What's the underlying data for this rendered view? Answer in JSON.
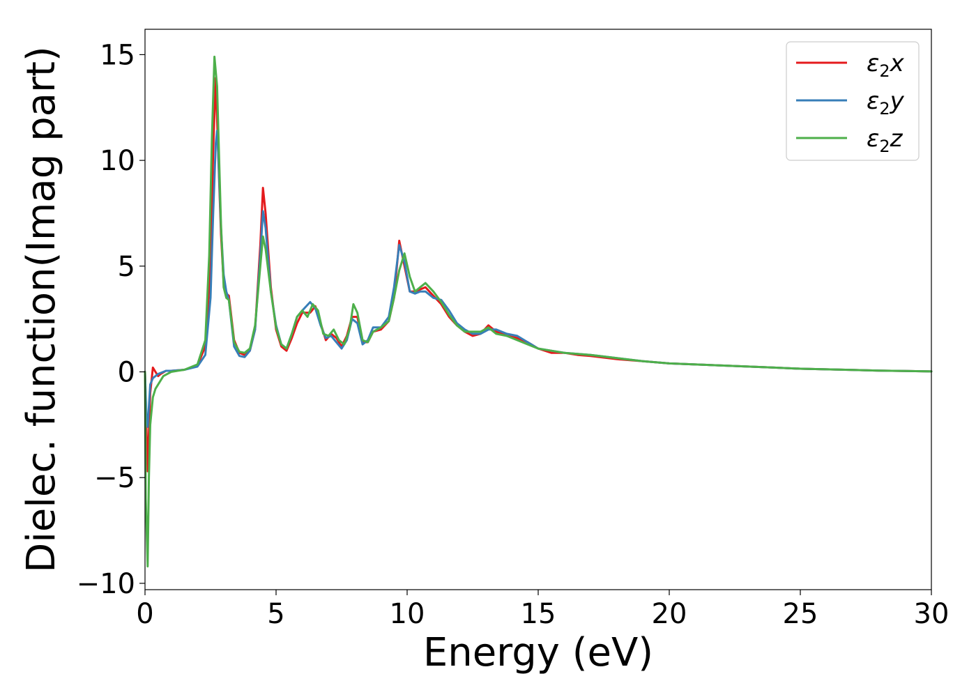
{
  "chart_data": {
    "type": "line",
    "xlabel": "Energy (eV)",
    "ylabel": "Dielec. function(Imag part)",
    "xlim": [
      0,
      30
    ],
    "ylim": [
      -10.3,
      16.2
    ],
    "xticks": [
      0,
      5,
      10,
      15,
      20,
      25,
      30
    ],
    "yticks": [
      -10,
      -5,
      0,
      5,
      10,
      15
    ],
    "xtick_labels": [
      "0",
      "5",
      "10",
      "15",
      "20",
      "25",
      "30"
    ],
    "ytick_labels": [
      "−10",
      "−5",
      "0",
      "5",
      "10",
      "15"
    ],
    "grid": false,
    "legend_position": "top-right",
    "series": [
      {
        "name": "ε₂x",
        "legend_main": "ε",
        "legend_sub": "2",
        "legend_var": "x",
        "color": "#e41a1c",
        "points": [
          [
            0,
            0
          ],
          [
            0.05,
            -2.5
          ],
          [
            0.1,
            -4.7
          ],
          [
            0.2,
            -1.0
          ],
          [
            0.3,
            0.2
          ],
          [
            0.4,
            0.0
          ],
          [
            0.5,
            -0.2
          ],
          [
            0.6,
            -0.1
          ],
          [
            0.8,
            0.05
          ],
          [
            1.0,
            0.05
          ],
          [
            1.5,
            0.1
          ],
          [
            2.0,
            0.3
          ],
          [
            2.3,
            1.2
          ],
          [
            2.5,
            5.0
          ],
          [
            2.6,
            10.5
          ],
          [
            2.7,
            13.9
          ],
          [
            2.8,
            10.0
          ],
          [
            2.9,
            6.5
          ],
          [
            3.0,
            4.2
          ],
          [
            3.1,
            3.7
          ],
          [
            3.2,
            3.6
          ],
          [
            3.4,
            1.5
          ],
          [
            3.6,
            0.9
          ],
          [
            3.8,
            0.8
          ],
          [
            4.0,
            1.0
          ],
          [
            4.2,
            2.0
          ],
          [
            4.4,
            6.0
          ],
          [
            4.5,
            8.7
          ],
          [
            4.6,
            7.5
          ],
          [
            4.8,
            4.0
          ],
          [
            5.0,
            2.0
          ],
          [
            5.2,
            1.2
          ],
          [
            5.4,
            1.0
          ],
          [
            5.6,
            1.6
          ],
          [
            5.8,
            2.3
          ],
          [
            6.0,
            2.8
          ],
          [
            6.3,
            2.8
          ],
          [
            6.5,
            3.1
          ],
          [
            6.7,
            2.3
          ],
          [
            6.9,
            1.5
          ],
          [
            7.1,
            1.8
          ],
          [
            7.3,
            1.6
          ],
          [
            7.5,
            1.2
          ],
          [
            7.7,
            1.7
          ],
          [
            7.9,
            2.6
          ],
          [
            8.1,
            2.6
          ],
          [
            8.3,
            1.4
          ],
          [
            8.5,
            1.4
          ],
          [
            8.7,
            1.9
          ],
          [
            9.0,
            2.0
          ],
          [
            9.3,
            2.4
          ],
          [
            9.5,
            3.5
          ],
          [
            9.7,
            6.2
          ],
          [
            9.9,
            5.0
          ],
          [
            10.1,
            3.8
          ],
          [
            10.3,
            3.8
          ],
          [
            10.5,
            3.9
          ],
          [
            10.7,
            4.0
          ],
          [
            11.0,
            3.6
          ],
          [
            11.3,
            3.2
          ],
          [
            11.6,
            2.6
          ],
          [
            11.9,
            2.2
          ],
          [
            12.2,
            1.9
          ],
          [
            12.5,
            1.7
          ],
          [
            12.8,
            1.8
          ],
          [
            13.1,
            2.2
          ],
          [
            13.4,
            1.9
          ],
          [
            13.8,
            1.7
          ],
          [
            14.2,
            1.6
          ],
          [
            14.6,
            1.4
          ],
          [
            15.0,
            1.1
          ],
          [
            15.5,
            0.9
          ],
          [
            16.0,
            0.9
          ],
          [
            16.5,
            0.8
          ],
          [
            17.0,
            0.75
          ],
          [
            18.0,
            0.6
          ],
          [
            19.0,
            0.5
          ],
          [
            20.0,
            0.4
          ],
          [
            21.0,
            0.35
          ],
          [
            22.0,
            0.3
          ],
          [
            23.0,
            0.25
          ],
          [
            24.0,
            0.2
          ],
          [
            25.0,
            0.15
          ],
          [
            26.0,
            0.12
          ],
          [
            27.0,
            0.09
          ],
          [
            28.0,
            0.06
          ],
          [
            29.0,
            0.04
          ],
          [
            30.0,
            0.02
          ]
        ]
      },
      {
        "name": "ε₂y",
        "legend_main": "ε",
        "legend_sub": "2",
        "legend_var": "y",
        "color": "#377eb8",
        "points": [
          [
            0,
            0
          ],
          [
            0.05,
            -2.0
          ],
          [
            0.1,
            -2.6
          ],
          [
            0.2,
            -0.6
          ],
          [
            0.3,
            -0.3
          ],
          [
            0.5,
            -0.1
          ],
          [
            0.8,
            0.05
          ],
          [
            1.0,
            0.05
          ],
          [
            1.5,
            0.1
          ],
          [
            2.0,
            0.25
          ],
          [
            2.3,
            0.8
          ],
          [
            2.5,
            3.5
          ],
          [
            2.6,
            7.5
          ],
          [
            2.7,
            10.8
          ],
          [
            2.75,
            11.4
          ],
          [
            2.8,
            10.2
          ],
          [
            2.9,
            6.8
          ],
          [
            3.0,
            4.6
          ],
          [
            3.1,
            3.8
          ],
          [
            3.2,
            3.4
          ],
          [
            3.4,
            1.2
          ],
          [
            3.6,
            0.75
          ],
          [
            3.8,
            0.7
          ],
          [
            4.0,
            1.0
          ],
          [
            4.2,
            2.0
          ],
          [
            4.4,
            5.5
          ],
          [
            4.5,
            7.6
          ],
          [
            4.6,
            6.8
          ],
          [
            4.8,
            3.8
          ],
          [
            5.0,
            2.2
          ],
          [
            5.2,
            1.3
          ],
          [
            5.4,
            1.1
          ],
          [
            5.6,
            1.8
          ],
          [
            5.8,
            2.6
          ],
          [
            6.0,
            2.9
          ],
          [
            6.3,
            3.3
          ],
          [
            6.5,
            3.0
          ],
          [
            6.7,
            2.2
          ],
          [
            6.9,
            1.6
          ],
          [
            7.1,
            1.7
          ],
          [
            7.3,
            1.4
          ],
          [
            7.5,
            1.1
          ],
          [
            7.7,
            1.5
          ],
          [
            7.9,
            2.5
          ],
          [
            8.1,
            2.3
          ],
          [
            8.3,
            1.3
          ],
          [
            8.5,
            1.5
          ],
          [
            8.7,
            2.1
          ],
          [
            9.0,
            2.1
          ],
          [
            9.3,
            2.6
          ],
          [
            9.5,
            4.0
          ],
          [
            9.7,
            6.0
          ],
          [
            9.9,
            5.2
          ],
          [
            10.1,
            3.8
          ],
          [
            10.3,
            3.7
          ],
          [
            10.5,
            3.8
          ],
          [
            10.7,
            3.8
          ],
          [
            11.0,
            3.5
          ],
          [
            11.3,
            3.4
          ],
          [
            11.6,
            2.9
          ],
          [
            11.9,
            2.3
          ],
          [
            12.2,
            2.0
          ],
          [
            12.5,
            1.8
          ],
          [
            12.8,
            1.8
          ],
          [
            13.1,
            2.0
          ],
          [
            13.4,
            2.0
          ],
          [
            13.8,
            1.8
          ],
          [
            14.2,
            1.7
          ],
          [
            14.6,
            1.4
          ],
          [
            15.0,
            1.1
          ],
          [
            15.5,
            1.0
          ],
          [
            16.0,
            0.9
          ],
          [
            16.5,
            0.85
          ],
          [
            17.0,
            0.8
          ],
          [
            18.0,
            0.65
          ],
          [
            19.0,
            0.5
          ],
          [
            20.0,
            0.4
          ],
          [
            21.0,
            0.35
          ],
          [
            22.0,
            0.3
          ],
          [
            23.0,
            0.25
          ],
          [
            24.0,
            0.2
          ],
          [
            25.0,
            0.15
          ],
          [
            26.0,
            0.12
          ],
          [
            27.0,
            0.09
          ],
          [
            28.0,
            0.06
          ],
          [
            29.0,
            0.04
          ],
          [
            30.0,
            0.02
          ]
        ]
      },
      {
        "name": "ε₂z",
        "legend_main": "ε",
        "legend_sub": "2",
        "legend_var": "z",
        "color": "#4daf4a",
        "points": [
          [
            0,
            0
          ],
          [
            0.03,
            -6.0
          ],
          [
            0.1,
            -9.2
          ],
          [
            0.15,
            -5.0
          ],
          [
            0.2,
            -2.5
          ],
          [
            0.3,
            -1.2
          ],
          [
            0.4,
            -0.8
          ],
          [
            0.5,
            -0.6
          ],
          [
            0.7,
            -0.2
          ],
          [
            1.0,
            0.0
          ],
          [
            1.5,
            0.1
          ],
          [
            2.0,
            0.35
          ],
          [
            2.3,
            1.5
          ],
          [
            2.45,
            5.5
          ],
          [
            2.55,
            11.0
          ],
          [
            2.65,
            14.9
          ],
          [
            2.75,
            13.5
          ],
          [
            2.9,
            7.0
          ],
          [
            3.0,
            4.0
          ],
          [
            3.1,
            3.5
          ],
          [
            3.2,
            3.4
          ],
          [
            3.4,
            1.4
          ],
          [
            3.6,
            0.95
          ],
          [
            3.8,
            0.9
          ],
          [
            4.0,
            1.1
          ],
          [
            4.2,
            2.2
          ],
          [
            4.4,
            5.0
          ],
          [
            4.5,
            6.4
          ],
          [
            4.6,
            5.8
          ],
          [
            4.8,
            3.8
          ],
          [
            5.0,
            2.1
          ],
          [
            5.2,
            1.3
          ],
          [
            5.4,
            1.1
          ],
          [
            5.6,
            1.8
          ],
          [
            5.8,
            2.6
          ],
          [
            6.0,
            2.9
          ],
          [
            6.2,
            2.6
          ],
          [
            6.4,
            3.2
          ],
          [
            6.6,
            2.9
          ],
          [
            6.8,
            1.8
          ],
          [
            7.0,
            1.7
          ],
          [
            7.2,
            2.0
          ],
          [
            7.4,
            1.5
          ],
          [
            7.6,
            1.3
          ],
          [
            7.8,
            2.0
          ],
          [
            7.95,
            3.2
          ],
          [
            8.1,
            2.8
          ],
          [
            8.3,
            1.5
          ],
          [
            8.5,
            1.4
          ],
          [
            8.7,
            1.9
          ],
          [
            9.0,
            2.1
          ],
          [
            9.3,
            2.4
          ],
          [
            9.5,
            3.5
          ],
          [
            9.7,
            4.8
          ],
          [
            9.9,
            5.6
          ],
          [
            10.1,
            4.5
          ],
          [
            10.3,
            3.8
          ],
          [
            10.5,
            4.0
          ],
          [
            10.7,
            4.2
          ],
          [
            11.0,
            3.8
          ],
          [
            11.3,
            3.3
          ],
          [
            11.6,
            2.7
          ],
          [
            11.9,
            2.2
          ],
          [
            12.2,
            1.9
          ],
          [
            12.5,
            1.9
          ],
          [
            12.8,
            1.9
          ],
          [
            13.1,
            2.1
          ],
          [
            13.4,
            1.8
          ],
          [
            13.8,
            1.7
          ],
          [
            14.2,
            1.5
          ],
          [
            14.6,
            1.3
          ],
          [
            15.0,
            1.1
          ],
          [
            15.5,
            1.0
          ],
          [
            16.0,
            0.9
          ],
          [
            16.5,
            0.85
          ],
          [
            17.0,
            0.8
          ],
          [
            18.0,
            0.65
          ],
          [
            19.0,
            0.5
          ],
          [
            20.0,
            0.4
          ],
          [
            21.0,
            0.35
          ],
          [
            22.0,
            0.3
          ],
          [
            23.0,
            0.25
          ],
          [
            24.0,
            0.2
          ],
          [
            25.0,
            0.15
          ],
          [
            26.0,
            0.12
          ],
          [
            27.0,
            0.09
          ],
          [
            28.0,
            0.06
          ],
          [
            29.0,
            0.04
          ],
          [
            30.0,
            0.02
          ]
        ]
      }
    ]
  }
}
